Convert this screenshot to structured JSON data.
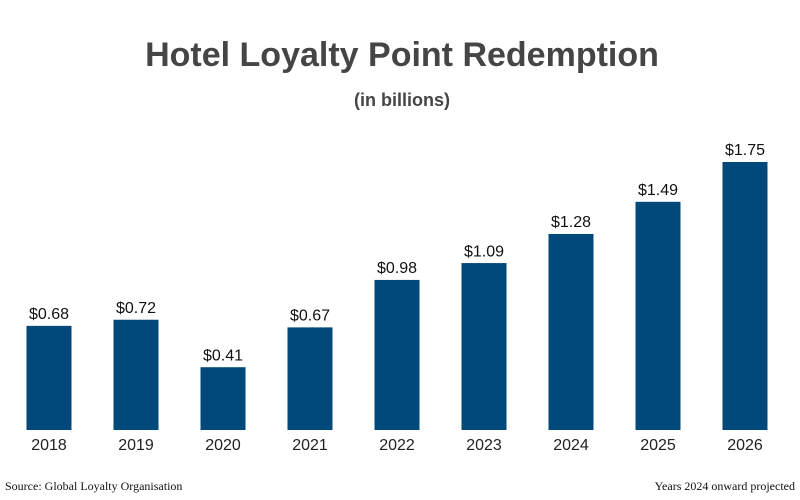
{
  "chart_data": {
    "type": "bar",
    "title": "Hotel Loyalty Point Redemption",
    "subtitle": "(in billions)",
    "categories": [
      "2018",
      "2019",
      "2020",
      "2021",
      "2022",
      "2023",
      "2024",
      "2025",
      "2026"
    ],
    "values": [
      0.68,
      0.72,
      0.41,
      0.67,
      0.98,
      1.09,
      1.28,
      1.49,
      1.75
    ],
    "value_labels": [
      "$0.68",
      "$0.72",
      "$0.41",
      "$0.67",
      "$0.98",
      "$1.09",
      "$1.28",
      "$1.49",
      "$1.75"
    ],
    "color": "#00497a",
    "source": "Source: Global Loyalty Organisation",
    "note": "Years 2024 onward projected"
  }
}
